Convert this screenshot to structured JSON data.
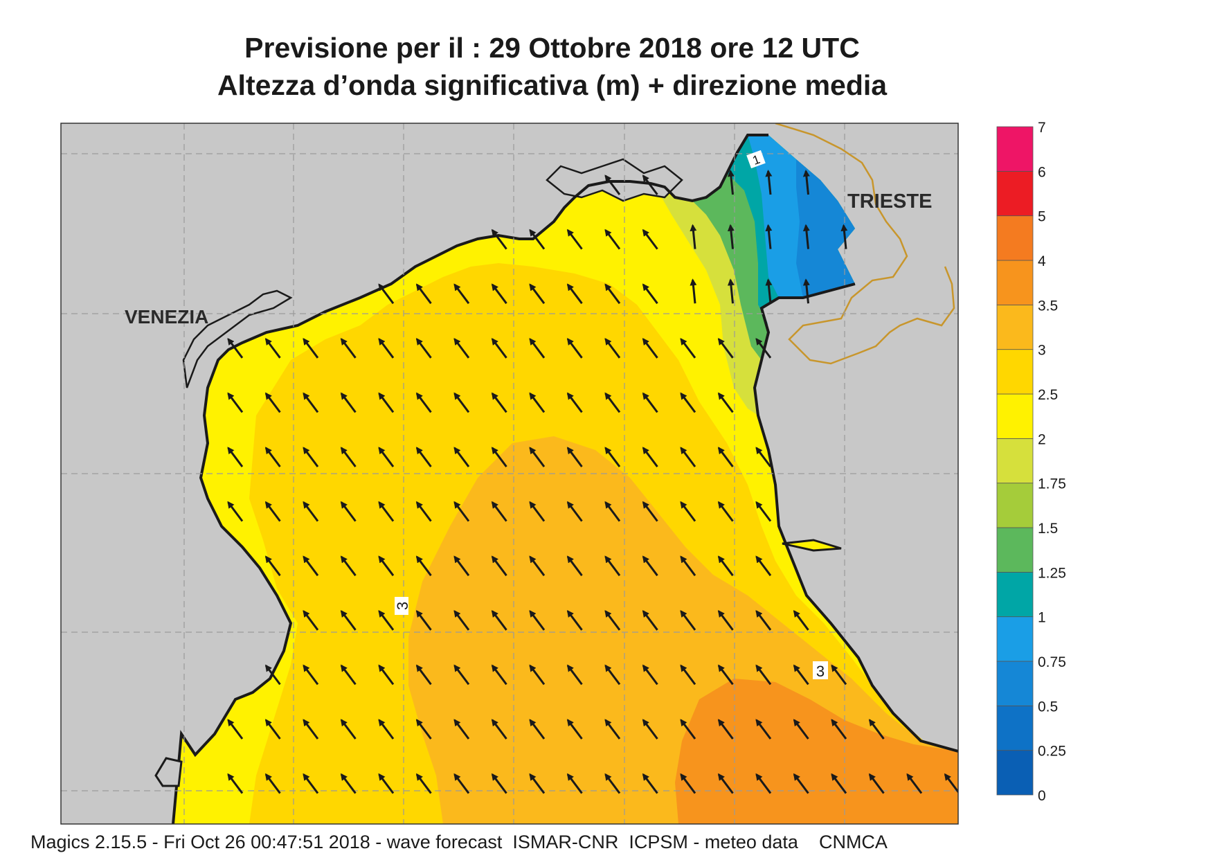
{
  "title": {
    "line1": "Previsione per il  :  29  Ottobre  2018   ore 12 UTC",
    "line2": "Altezza d’onda significativa (m) + direzione media"
  },
  "places": {
    "venezia": "VENEZIA",
    "trieste": "TRIESTE"
  },
  "contour_labels": [
    "3",
    "3",
    "1"
  ],
  "colorbar": {
    "levels": [
      "0",
      "0.25",
      "0.5",
      "0.75",
      "1",
      "1.25",
      "1.5",
      "1.75",
      "2",
      "2.5",
      "3",
      "3.5",
      "4",
      "5",
      "6",
      "7"
    ],
    "colors": [
      "#0a5fb4",
      "#0e72c6",
      "#1587d6",
      "#1a9ee6",
      "#00a6a6",
      "#5cb85c",
      "#a5cc3a",
      "#d6e03c",
      "#fff200",
      "#ffd700",
      "#fbb91c",
      "#f7941d",
      "#f47b20",
      "#ec1c24",
      "#ee1566"
    ]
  },
  "map": {
    "land_color": "#c8c8c8",
    "border_color": "#c8962c",
    "arrow_direction": "north-west"
  },
  "footer": "Magics 2.15.5 - Fri Oct 26 00:47:51 2018 - wave forecast  ISMAR-CNR  ICPSM - meteo data    CNMCA"
}
